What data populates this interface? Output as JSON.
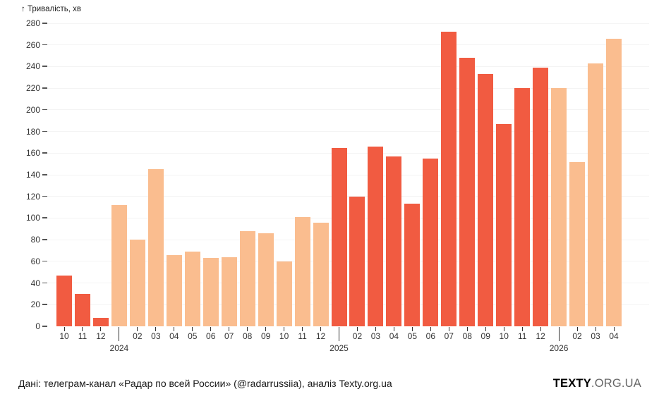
{
  "chart_data": {
    "type": "bar",
    "y_axis_title": "↑ Тривалість, хв",
    "ylim": [
      0,
      280
    ],
    "y_tick_step": 20,
    "grid": true,
    "legend": "none",
    "colors": {
      "red": "#F15B41",
      "peach": "#FABD8F"
    },
    "points": [
      {
        "month": "2023-10",
        "tick": "10",
        "value": 47,
        "shade": "red"
      },
      {
        "month": "2023-11",
        "tick": "11",
        "value": 30,
        "shade": "red"
      },
      {
        "month": "2023-12",
        "tick": "12",
        "value": 8,
        "shade": "red"
      },
      {
        "month": "2024-01",
        "tick": "",
        "year_label": "2024",
        "value": 112,
        "shade": "peach"
      },
      {
        "month": "2024-02",
        "tick": "02",
        "value": 80,
        "shade": "peach"
      },
      {
        "month": "2024-03",
        "tick": "03",
        "value": 145,
        "shade": "peach"
      },
      {
        "month": "2024-04",
        "tick": "04",
        "value": 66,
        "shade": "peach"
      },
      {
        "month": "2024-05",
        "tick": "05",
        "value": 69,
        "shade": "peach"
      },
      {
        "month": "2024-06",
        "tick": "06",
        "value": 63,
        "shade": "peach"
      },
      {
        "month": "2024-07",
        "tick": "07",
        "value": 64,
        "shade": "peach"
      },
      {
        "month": "2024-08",
        "tick": "08",
        "value": 88,
        "shade": "peach"
      },
      {
        "month": "2024-09",
        "tick": "09",
        "value": 86,
        "shade": "peach"
      },
      {
        "month": "2024-10",
        "tick": "10",
        "value": 60,
        "shade": "peach"
      },
      {
        "month": "2024-11",
        "tick": "11",
        "value": 101,
        "shade": "peach"
      },
      {
        "month": "2024-12",
        "tick": "12",
        "value": 96,
        "shade": "peach"
      },
      {
        "month": "2025-01",
        "tick": "",
        "year_label": "2025",
        "value": 165,
        "shade": "red"
      },
      {
        "month": "2025-02",
        "tick": "02",
        "value": 120,
        "shade": "red"
      },
      {
        "month": "2025-03",
        "tick": "03",
        "value": 166,
        "shade": "red"
      },
      {
        "month": "2025-04",
        "tick": "04",
        "value": 157,
        "shade": "red"
      },
      {
        "month": "2025-05",
        "tick": "05",
        "value": 113,
        "shade": "red"
      },
      {
        "month": "2025-06",
        "tick": "06",
        "value": 155,
        "shade": "red"
      },
      {
        "month": "2025-07",
        "tick": "07",
        "value": 272,
        "shade": "red"
      },
      {
        "month": "2025-08",
        "tick": "08",
        "value": 248,
        "shade": "red"
      },
      {
        "month": "2025-09",
        "tick": "09",
        "value": 233,
        "shade": "red"
      },
      {
        "month": "2025-10",
        "tick": "10",
        "value": 187,
        "shade": "red"
      },
      {
        "month": "2025-11",
        "tick": "11",
        "value": 220,
        "shade": "red"
      },
      {
        "month": "2025-12",
        "tick": "12",
        "value": 239,
        "shade": "red"
      },
      {
        "month": "2026-01",
        "tick": "",
        "year_label": "2026",
        "value": 220,
        "shade": "peach"
      },
      {
        "month": "2026-02",
        "tick": "02",
        "value": 152,
        "shade": "peach"
      },
      {
        "month": "2026-03",
        "tick": "03",
        "value": 243,
        "shade": "peach"
      },
      {
        "month": "2026-04",
        "tick": "04",
        "value": 266,
        "shade": "peach"
      }
    ]
  },
  "footer": {
    "source_text": "Дані: телеграм-канал «Радар по всей России» (@radarrussiia), аналіз Texty.org.ua"
  },
  "logo": {
    "bold": "TEXTY",
    "rest": ".ORG.UA"
  }
}
